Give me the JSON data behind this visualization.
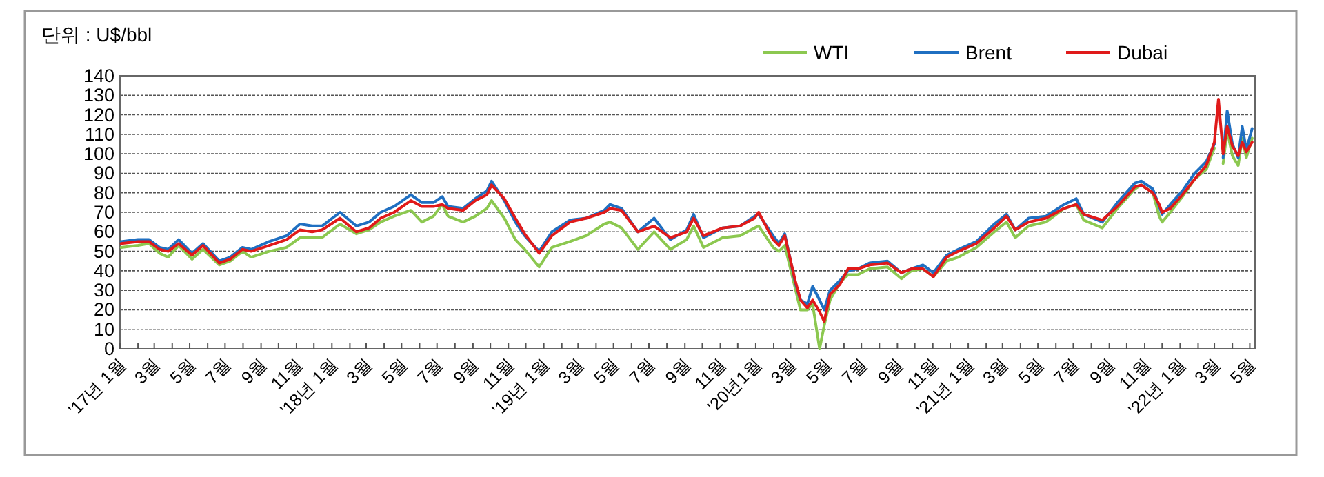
{
  "chart_data": {
    "type": "line",
    "ylabel": "단위 : U$/bbl",
    "legend": "top right",
    "grid": "y",
    "marker": "none",
    "line_style": "solid",
    "xlim": [
      "2017-01-01",
      "2022-05-10"
    ],
    "ylim": [
      0,
      140
    ],
    "yticks": [
      0,
      10,
      20,
      30,
      40,
      50,
      60,
      70,
      80,
      90,
      100,
      110,
      120,
      130,
      140
    ],
    "xticks": [
      {
        "value": "2017-01-01",
        "label": "'17년 1월"
      },
      {
        "value": "2017-02-01",
        "label": null
      },
      {
        "value": "2017-03-01",
        "label": "3월"
      },
      {
        "value": "2017-04-01",
        "label": null
      },
      {
        "value": "2017-05-01",
        "label": "5월"
      },
      {
        "value": "2017-06-01",
        "label": null
      },
      {
        "value": "2017-07-01",
        "label": "7월"
      },
      {
        "value": "2017-08-01",
        "label": null
      },
      {
        "value": "2017-09-01",
        "label": "9월"
      },
      {
        "value": "2017-10-01",
        "label": null
      },
      {
        "value": "2017-11-01",
        "label": "11월"
      },
      {
        "value": "2017-12-01",
        "label": null
      },
      {
        "value": "2018-01-01",
        "label": "'18년 1월"
      },
      {
        "value": "2018-02-01",
        "label": null
      },
      {
        "value": "2018-03-01",
        "label": "3월"
      },
      {
        "value": "2018-04-01",
        "label": null
      },
      {
        "value": "2018-05-01",
        "label": "5월"
      },
      {
        "value": "2018-06-01",
        "label": null
      },
      {
        "value": "2018-07-01",
        "label": "7월"
      },
      {
        "value": "2018-08-01",
        "label": null
      },
      {
        "value": "2018-09-01",
        "label": "9월"
      },
      {
        "value": "2018-10-01",
        "label": null
      },
      {
        "value": "2018-11-01",
        "label": "11월"
      },
      {
        "value": "2018-12-01",
        "label": null
      },
      {
        "value": "2019-01-01",
        "label": "'19년 1월"
      },
      {
        "value": "2019-02-01",
        "label": null
      },
      {
        "value": "2019-03-01",
        "label": "3월"
      },
      {
        "value": "2019-04-01",
        "label": null
      },
      {
        "value": "2019-05-01",
        "label": "5월"
      },
      {
        "value": "2019-06-01",
        "label": null
      },
      {
        "value": "2019-07-01",
        "label": "7월"
      },
      {
        "value": "2019-08-01",
        "label": null
      },
      {
        "value": "2019-09-01",
        "label": "9월"
      },
      {
        "value": "2019-10-01",
        "label": null
      },
      {
        "value": "2019-11-01",
        "label": "11월"
      },
      {
        "value": "2019-12-01",
        "label": null
      },
      {
        "value": "2020-01-01",
        "label": "'20년1월"
      },
      {
        "value": "2020-02-01",
        "label": null
      },
      {
        "value": "2020-03-01",
        "label": "3월"
      },
      {
        "value": "2020-04-01",
        "label": null
      },
      {
        "value": "2020-05-01",
        "label": "5월"
      },
      {
        "value": "2020-06-01",
        "label": null
      },
      {
        "value": "2020-07-01",
        "label": "7월"
      },
      {
        "value": "2020-08-01",
        "label": null
      },
      {
        "value": "2020-09-01",
        "label": "9월"
      },
      {
        "value": "2020-10-01",
        "label": null
      },
      {
        "value": "2020-11-01",
        "label": "11월"
      },
      {
        "value": "2020-12-01",
        "label": null
      },
      {
        "value": "2021-01-01",
        "label": "'21년 1월"
      },
      {
        "value": "2021-02-01",
        "label": null
      },
      {
        "value": "2021-03-01",
        "label": "3월"
      },
      {
        "value": "2021-04-01",
        "label": null
      },
      {
        "value": "2021-05-01",
        "label": "5월"
      },
      {
        "value": "2021-06-01",
        "label": null
      },
      {
        "value": "2021-07-01",
        "label": "7월"
      },
      {
        "value": "2021-08-01",
        "label": null
      },
      {
        "value": "2021-09-01",
        "label": "9월"
      },
      {
        "value": "2021-10-01",
        "label": null
      },
      {
        "value": "2021-11-01",
        "label": "11월"
      },
      {
        "value": "2021-12-01",
        "label": null
      },
      {
        "value": "2022-01-01",
        "label": "'22년 1월"
      },
      {
        "value": "2022-02-01",
        "label": null
      },
      {
        "value": "2022-03-01",
        "label": "3월"
      },
      {
        "value": "2022-04-01",
        "label": null
      },
      {
        "value": "2022-05-01",
        "label": "5월"
      }
    ],
    "x": [
      "2017-01-03",
      "2017-02-01",
      "2017-02-20",
      "2017-03-10",
      "2017-03-25",
      "2017-04-12",
      "2017-05-05",
      "2017-05-24",
      "2017-06-21",
      "2017-07-10",
      "2017-07-31",
      "2017-08-15",
      "2017-09-15",
      "2017-10-15",
      "2017-11-07",
      "2017-11-28",
      "2017-12-15",
      "2018-01-15",
      "2018-02-12",
      "2018-03-06",
      "2018-03-26",
      "2018-04-18",
      "2018-05-17",
      "2018-06-05",
      "2018-06-25",
      "2018-07-10",
      "2018-07-20",
      "2018-08-15",
      "2018-09-05",
      "2018-09-25",
      "2018-10-03",
      "2018-10-25",
      "2018-11-13",
      "2018-11-29",
      "2018-12-24",
      "2019-01-15",
      "2019-02-15",
      "2019-03-15",
      "2019-04-15",
      "2019-04-25",
      "2019-05-15",
      "2019-06-12",
      "2019-07-10",
      "2019-08-07",
      "2019-09-04",
      "2019-09-16",
      "2019-10-03",
      "2019-11-05",
      "2019-12-05",
      "2019-12-30",
      "2020-01-06",
      "2020-01-31",
      "2020-02-10",
      "2020-02-20",
      "2020-03-09",
      "2020-03-18",
      "2020-03-30",
      "2020-04-08",
      "2020-04-20",
      "2020-04-28",
      "2020-05-08",
      "2020-05-25",
      "2020-06-08",
      "2020-06-25",
      "2020-07-15",
      "2020-08-15",
      "2020-09-08",
      "2020-09-25",
      "2020-10-15",
      "2020-11-02",
      "2020-11-25",
      "2020-12-15",
      "2021-01-15",
      "2021-02-15",
      "2021-03-08",
      "2021-03-23",
      "2021-04-15",
      "2021-05-15",
      "2021-06-15",
      "2021-07-06",
      "2021-07-19",
      "2021-08-20",
      "2021-09-15",
      "2021-10-15",
      "2021-10-26",
      "2021-11-15",
      "2021-11-26",
      "2021-12-01",
      "2021-12-15",
      "2022-01-05",
      "2022-01-26",
      "2022-02-15",
      "2022-03-01",
      "2022-03-08",
      "2022-03-16",
      "2022-03-23",
      "2022-04-01",
      "2022-04-11",
      "2022-04-18",
      "2022-04-25",
      "2022-05-05"
    ],
    "series": [
      {
        "name": "WTI",
        "color": "#8cc850",
        "values": [
          52,
          53,
          54,
          49,
          47,
          53,
          46,
          51,
          43,
          45,
          50,
          47,
          50,
          52,
          57,
          57,
          57,
          64,
          59,
          61,
          65,
          68,
          71,
          65,
          68,
          74,
          68,
          65,
          68,
          72,
          76,
          67,
          56,
          51,
          42,
          52,
          55,
          58,
          64,
          65,
          62,
          51,
          60,
          51,
          56,
          63,
          52,
          57,
          58,
          62,
          63,
          52,
          50,
          53,
          31,
          20,
          20,
          23,
          0,
          12,
          25,
          34,
          38,
          38,
          41,
          42,
          36,
          40,
          41,
          37,
          45,
          47,
          52,
          60,
          65,
          57,
          63,
          65,
          72,
          74,
          66,
          62,
          72,
          82,
          84,
          80,
          68,
          65,
          70,
          78,
          87,
          92,
          103,
          null,
          95,
          112,
          99,
          94,
          108,
          98,
          108
        ]
      },
      {
        "name": "Brent",
        "color": "#1f6fc1",
        "values": [
          55,
          56,
          56,
          52,
          51,
          56,
          49,
          54,
          45,
          47,
          52,
          51,
          55,
          58,
          64,
          63,
          63,
          70,
          63,
          65,
          70,
          73,
          79,
          75,
          75,
          78,
          73,
          72,
          77,
          81,
          86,
          76,
          65,
          58,
          50,
          60,
          66,
          67,
          71,
          74,
          72,
          60,
          67,
          56,
          61,
          69,
          57,
          62,
          63,
          68,
          69,
          58,
          54,
          59,
          34,
          25,
          23,
          32,
          25,
          20,
          30,
          35,
          40,
          41,
          44,
          45,
          39,
          41,
          43,
          39,
          48,
          51,
          55,
          64,
          69,
          61,
          67,
          68,
          74,
          77,
          69,
          65,
          75,
          85,
          86,
          82,
          73,
          69,
          74,
          81,
          90,
          96,
          105,
          null,
          98,
          122,
          105,
          98,
          114,
          102,
          113
        ]
      },
      {
        "name": "Dubai",
        "color": "#e01a1a",
        "values": [
          54,
          55,
          55,
          51,
          50,
          54,
          48,
          53,
          44,
          46,
          51,
          50,
          53,
          56,
          61,
          60,
          61,
          67,
          60,
          62,
          67,
          70,
          76,
          73,
          73,
          74,
          72,
          71,
          76,
          79,
          84,
          77,
          67,
          59,
          49,
          58,
          65,
          67,
          70,
          72,
          71,
          60,
          63,
          57,
          60,
          67,
          58,
          62,
          63,
          67,
          70,
          56,
          53,
          58,
          35,
          25,
          21,
          25,
          19,
          14,
          28,
          33,
          41,
          41,
          43,
          44,
          39,
          41,
          41,
          37,
          47,
          50,
          54,
          62,
          68,
          61,
          65,
          67,
          72,
          74,
          69,
          66,
          73,
          83,
          84,
          80,
          74,
          70,
          72,
          79,
          87,
          94,
          106,
          128,
          100,
          114,
          104,
          99,
          106,
          101,
          106
        ]
      }
    ]
  }
}
